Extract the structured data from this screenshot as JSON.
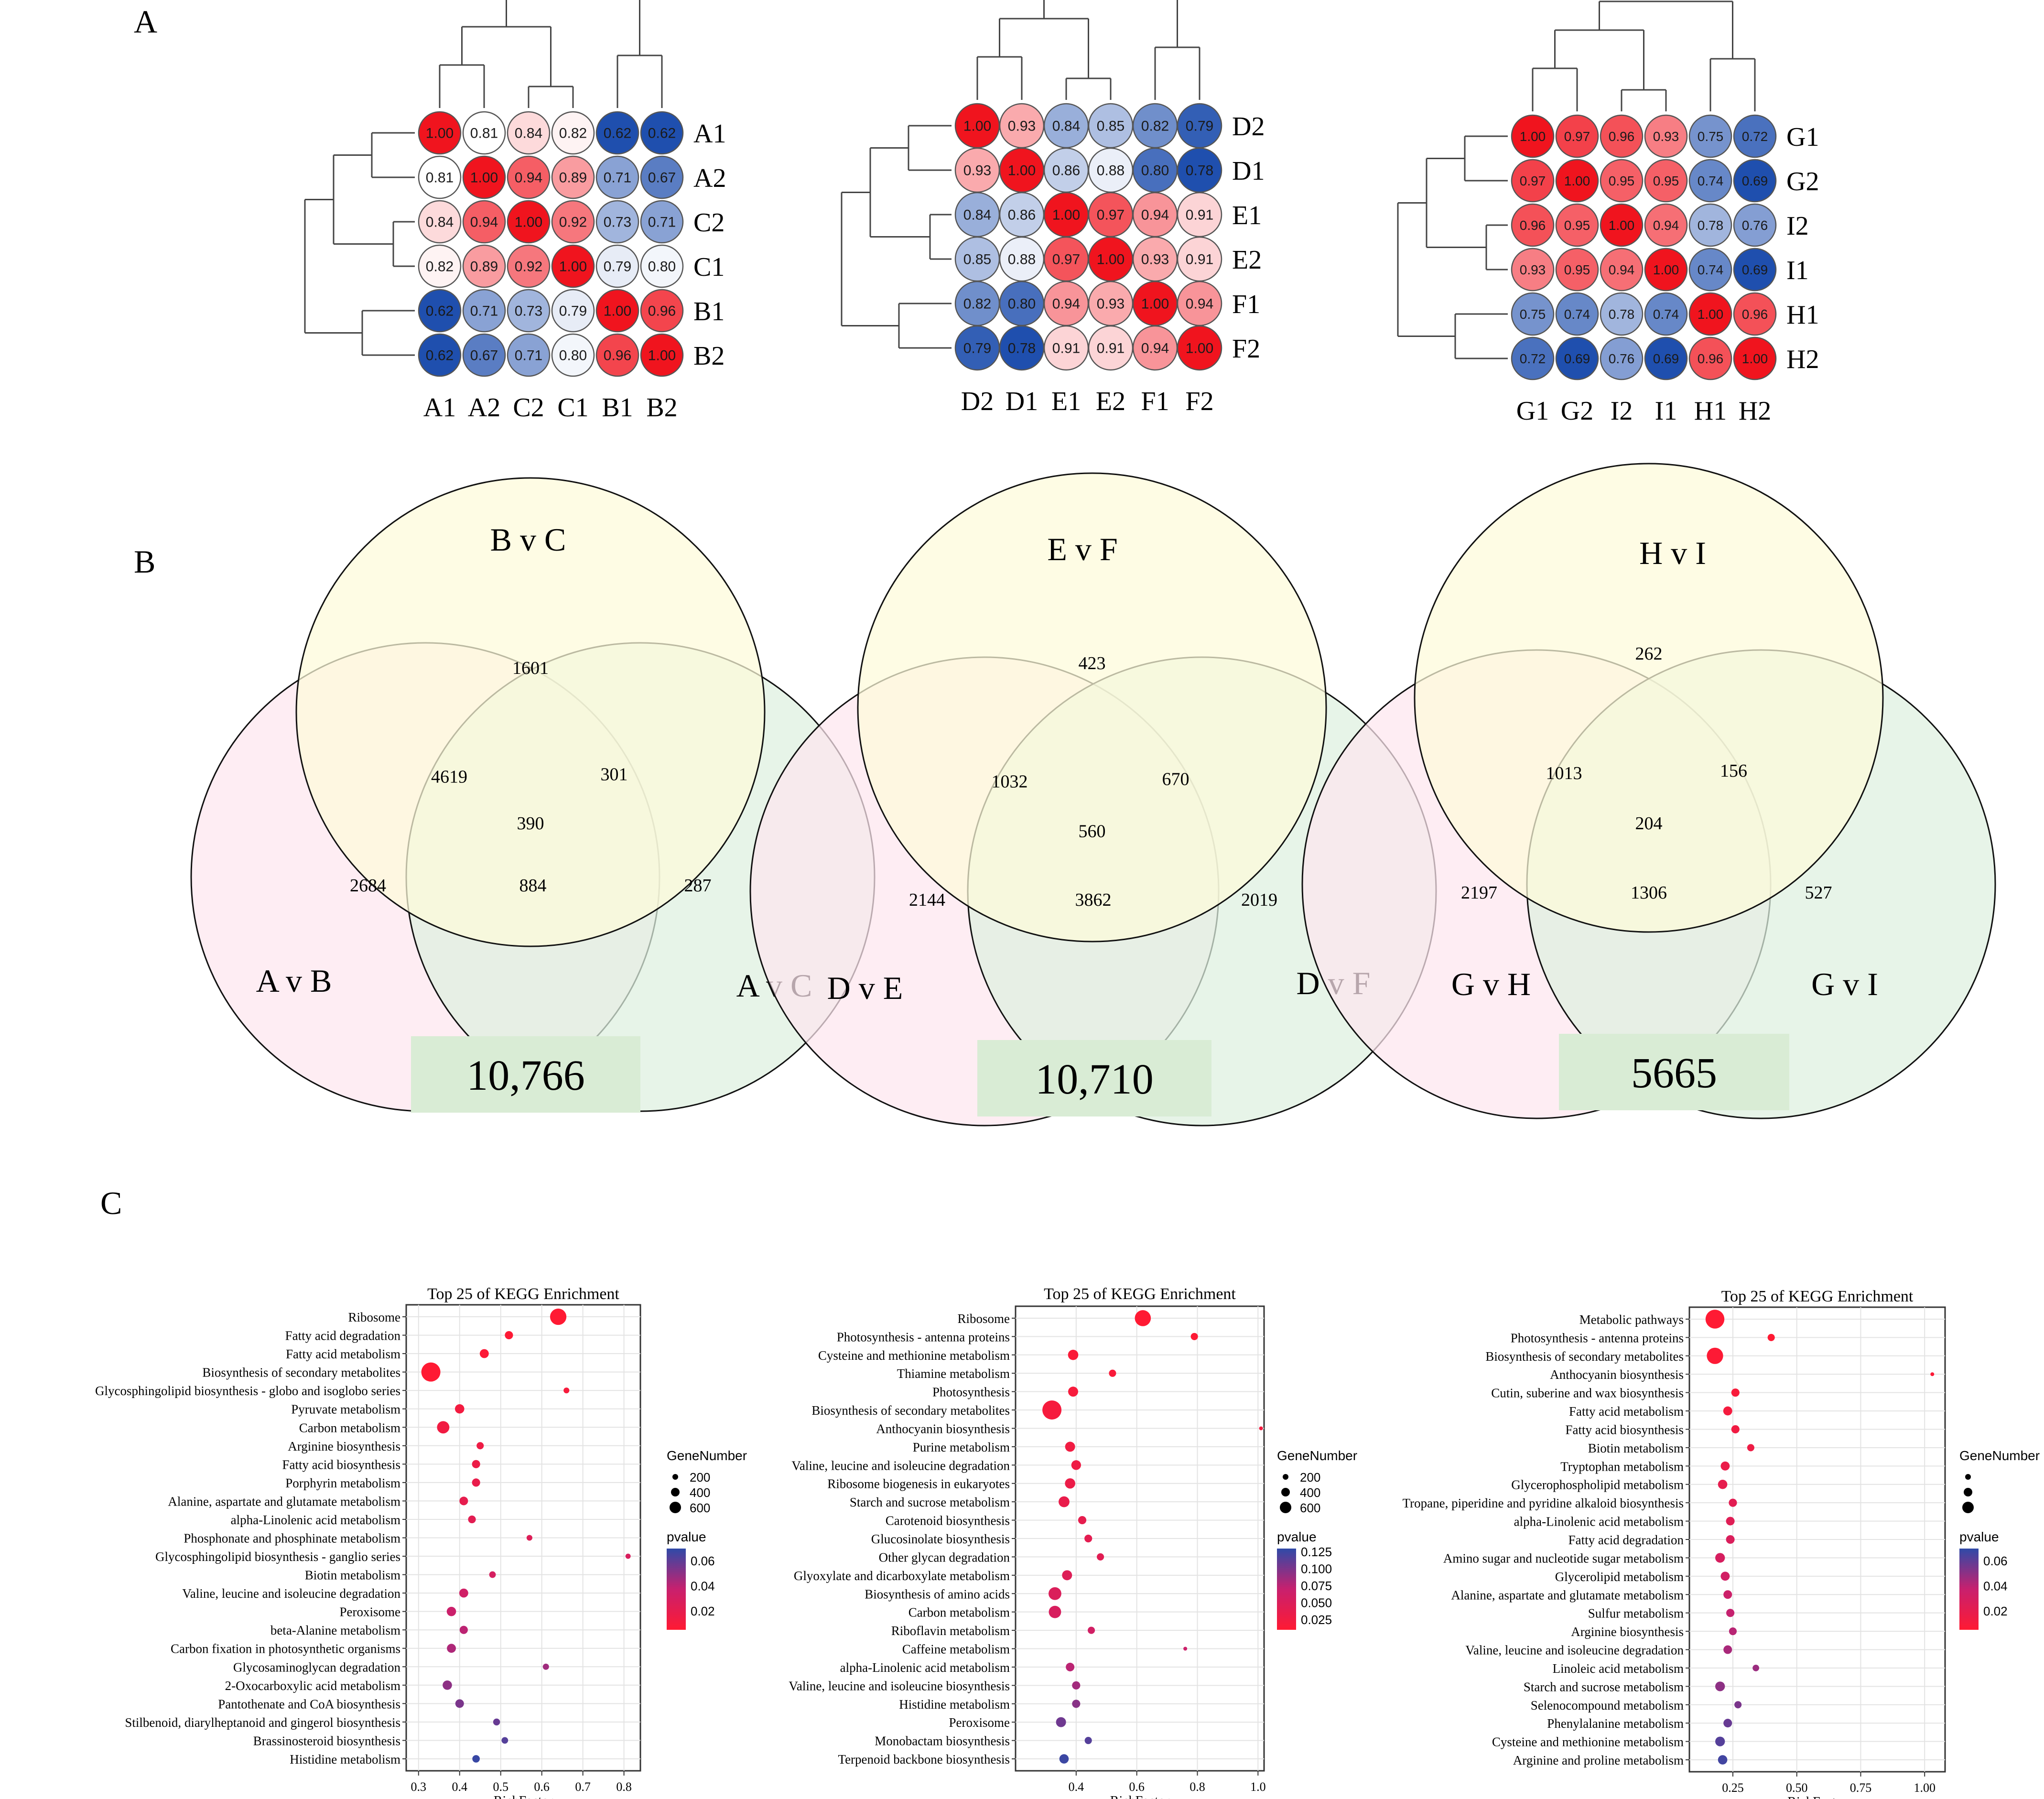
{
  "panel_labels": [
    "A",
    "B",
    "C"
  ],
  "chart_data": [
    {
      "type": "heatmap",
      "panel": "A",
      "title": "",
      "row_labels": [
        "A1",
        "A2",
        "C2",
        "C1",
        "B1",
        "B2"
      ],
      "col_labels": [
        "A1",
        "A2",
        "C2",
        "C1",
        "B1",
        "B2"
      ],
      "value_range": [
        0.62,
        1.0
      ],
      "colors": {
        "low": "#1f4fae",
        "mid": "#ffffff",
        "high": "#f0141e"
      },
      "values": [
        [
          1.0,
          0.81,
          0.84,
          0.82,
          0.62,
          0.62
        ],
        [
          0.81,
          1.0,
          0.94,
          0.89,
          0.71,
          0.67
        ],
        [
          0.84,
          0.94,
          1.0,
          0.92,
          0.73,
          0.71
        ],
        [
          0.82,
          0.89,
          0.92,
          1.0,
          0.79,
          0.8
        ],
        [
          0.62,
          0.71,
          0.73,
          0.79,
          1.0,
          0.96
        ],
        [
          0.62,
          0.67,
          0.71,
          0.8,
          0.96,
          1.0
        ]
      ],
      "dendrogram": [
        [
          0,
          1,
          2,
          3
        ],
        [
          [
            4,
            5
          ]
        ]
      ]
    },
    {
      "type": "heatmap",
      "panel": "A",
      "title": "",
      "row_labels": [
        "D2",
        "D1",
        "E1",
        "E2",
        "F1",
        "F2"
      ],
      "col_labels": [
        "D2",
        "D1",
        "E1",
        "E2",
        "F1",
        "F2"
      ],
      "value_range": [
        0.78,
        1.0
      ],
      "colors": {
        "low": "#1f4fae",
        "mid": "#ffffff",
        "high": "#f0141e"
      },
      "values": [
        [
          1.0,
          0.93,
          0.84,
          0.85,
          0.82,
          0.79
        ],
        [
          0.93,
          1.0,
          0.86,
          0.88,
          0.8,
          0.78
        ],
        [
          0.84,
          0.86,
          1.0,
          0.97,
          0.94,
          0.91
        ],
        [
          0.85,
          0.88,
          0.97,
          1.0,
          0.93,
          0.91
        ],
        [
          0.82,
          0.8,
          0.94,
          0.93,
          1.0,
          0.94
        ],
        [
          0.79,
          0.78,
          0.91,
          0.91,
          0.94,
          1.0
        ]
      ]
    },
    {
      "type": "heatmap",
      "panel": "A",
      "title": "",
      "row_labels": [
        "G1",
        "G2",
        "I2",
        "I1",
        "H1",
        "H2"
      ],
      "col_labels": [
        "G1",
        "G2",
        "I2",
        "I1",
        "H1",
        "H2"
      ],
      "value_range": [
        0.69,
        1.0
      ],
      "colors": {
        "low": "#1f4fae",
        "mid": "#ffffff",
        "high": "#f0141e"
      },
      "values": [
        [
          1.0,
          0.97,
          0.96,
          0.93,
          0.75,
          0.72
        ],
        [
          0.97,
          1.0,
          0.95,
          0.95,
          0.74,
          0.69
        ],
        [
          0.96,
          0.95,
          1.0,
          0.94,
          0.78,
          0.76
        ],
        [
          0.93,
          0.95,
          0.94,
          1.0,
          0.74,
          0.69
        ],
        [
          0.75,
          0.74,
          0.78,
          0.74,
          1.0,
          0.96
        ],
        [
          0.72,
          0.69,
          0.76,
          0.69,
          0.96,
          1.0
        ]
      ]
    },
    {
      "type": "venn",
      "panel": "B",
      "sets": [
        "B v C",
        "A v B",
        "A v C"
      ],
      "colors": [
        "#fdfbd9",
        "#fde6ee",
        "#def0df"
      ],
      "regions": {
        "only_top": "1601",
        "top_left": "4619",
        "top_right": "301",
        "center": "390",
        "only_left": "2684",
        "left_right": "884",
        "only_right": "287"
      },
      "total": "10,766"
    },
    {
      "type": "venn",
      "panel": "B",
      "sets": [
        "E v F",
        "D v E",
        "D v F"
      ],
      "colors": [
        "#fdfbd9",
        "#fde6ee",
        "#def0df"
      ],
      "regions": {
        "only_top": "423",
        "top_left": "1032",
        "top_right": "670",
        "center": "560",
        "only_left": "2144",
        "left_right": "3862",
        "only_right": "2019"
      },
      "total": "10,710"
    },
    {
      "type": "venn",
      "panel": "B",
      "sets": [
        "H v I",
        "G v H",
        "G v I"
      ],
      "colors": [
        "#fdfbd9",
        "#fde6ee",
        "#def0df"
      ],
      "regions": {
        "only_top": "262",
        "top_left": "1013",
        "top_right": "156",
        "center": "204",
        "only_left": "2197",
        "left_right": "1306",
        "only_right": "527"
      },
      "total": "5665"
    },
    {
      "type": "scatter",
      "panel": "C",
      "title": "Top 25 of KEGG Enrichment",
      "xlabel": "RichFactor",
      "xlim": [
        0.27,
        0.84
      ],
      "xticks": [
        0.3,
        0.4,
        0.5,
        0.6,
        0.7,
        0.8
      ],
      "xtick_labels": [
        "0.3",
        "0.4",
        "0.5",
        "0.6",
        "0.7",
        "0.8"
      ],
      "grid": true,
      "size_legend": {
        "title": "GeneNumber",
        "values": [
          200,
          400,
          600
        ],
        "labels": [
          "200",
          "400",
          "600"
        ]
      },
      "color_legend": {
        "title": "pvalue",
        "range": [
          0.005,
          0.07
        ],
        "ticks": [
          0.06,
          0.04,
          0.02
        ],
        "labels": [
          "0.06",
          "0.04",
          "0.02"
        ]
      },
      "points": [
        {
          "term": "Ribosome",
          "x": 0.64,
          "genes": 420,
          "p": 0.004
        },
        {
          "term": "Fatty acid degradation",
          "x": 0.52,
          "genes": 60,
          "p": 0.006
        },
        {
          "term": "Fatty acid metabolism",
          "x": 0.46,
          "genes": 80,
          "p": 0.007
        },
        {
          "term": "Biosynthesis of secondary metabolites",
          "x": 0.33,
          "genes": 620,
          "p": 0.004
        },
        {
          "term": "Glycosphingolipid biosynthesis - globo and isoglobo series",
          "x": 0.66,
          "genes": 20,
          "p": 0.01
        },
        {
          "term": "Pyruvate metabolism",
          "x": 0.4,
          "genes": 90,
          "p": 0.012
        },
        {
          "term": "Carbon metabolism",
          "x": 0.36,
          "genes": 200,
          "p": 0.013
        },
        {
          "term": "Arginine biosynthesis",
          "x": 0.45,
          "genes": 40,
          "p": 0.015
        },
        {
          "term": "Fatty acid biosynthesis",
          "x": 0.44,
          "genes": 60,
          "p": 0.016
        },
        {
          "term": "Porphyrin metabolism",
          "x": 0.44,
          "genes": 60,
          "p": 0.018
        },
        {
          "term": "Alanine, aspartate and glutamate metabolism",
          "x": 0.41,
          "genes": 70,
          "p": 0.02
        },
        {
          "term": "alpha-Linolenic acid metabolism",
          "x": 0.43,
          "genes": 50,
          "p": 0.022
        },
        {
          "term": "Phosphonate and phosphinate metabolism",
          "x": 0.57,
          "genes": 20,
          "p": 0.025
        },
        {
          "term": "Glycosphingolipid biosynthesis - ganglio series",
          "x": 0.81,
          "genes": 15,
          "p": 0.028
        },
        {
          "term": "Biotin metabolism",
          "x": 0.48,
          "genes": 30,
          "p": 0.03
        },
        {
          "term": "Valine, leucine and isoleucine degradation",
          "x": 0.41,
          "genes": 80,
          "p": 0.033
        },
        {
          "term": "Peroxisome",
          "x": 0.38,
          "genes": 90,
          "p": 0.036
        },
        {
          "term": "beta-Alanine metabolism",
          "x": 0.41,
          "genes": 60,
          "p": 0.04
        },
        {
          "term": "Carbon fixation in photosynthetic organisms",
          "x": 0.38,
          "genes": 80,
          "p": 0.043
        },
        {
          "term": "Glycosaminoglycan degradation",
          "x": 0.61,
          "genes": 25,
          "p": 0.046
        },
        {
          "term": "2-Oxocarboxylic acid metabolism",
          "x": 0.37,
          "genes": 90,
          "p": 0.05
        },
        {
          "term": "Pantothenate and CoA biosynthesis",
          "x": 0.4,
          "genes": 70,
          "p": 0.054
        },
        {
          "term": "Stilbenoid, diarylheptanoid and gingerol biosynthesis",
          "x": 0.49,
          "genes": 35,
          "p": 0.058
        },
        {
          "term": "Brassinosteroid biosynthesis",
          "x": 0.51,
          "genes": 30,
          "p": 0.062
        },
        {
          "term": "Histidine metabolism",
          "x": 0.44,
          "genes": 45,
          "p": 0.068
        }
      ]
    },
    {
      "type": "scatter",
      "panel": "C",
      "title": "Top 25 of KEGG Enrichment",
      "xlabel": "RichFactor",
      "xlim": [
        0.2,
        1.02
      ],
      "xticks": [
        0.4,
        0.6,
        0.8,
        1.0
      ],
      "xtick_labels": [
        "0.4",
        "0.6",
        "0.8",
        "1.0"
      ],
      "grid": true,
      "size_legend": {
        "title": "GeneNumber",
        "values": [
          200,
          400,
          600
        ],
        "labels": [
          "200",
          "400",
          "600"
        ]
      },
      "color_legend": {
        "title": "pvalue",
        "range": [
          0.01,
          0.13
        ],
        "ticks": [
          0.125,
          0.1,
          0.075,
          0.05,
          0.025
        ],
        "labels": [
          "0.125",
          "0.100",
          "0.075",
          "0.050",
          "0.025"
        ]
      },
      "points": [
        {
          "term": "Ribosome",
          "x": 0.62,
          "genes": 400,
          "p": 0.01
        },
        {
          "term": "Photosynthesis - antenna proteins",
          "x": 0.79,
          "genes": 40,
          "p": 0.012
        },
        {
          "term": "Cysteine and methionine metabolism",
          "x": 0.39,
          "genes": 120,
          "p": 0.015
        },
        {
          "term": "Thiamine metabolism",
          "x": 0.52,
          "genes": 40,
          "p": 0.017
        },
        {
          "term": "Photosynthesis",
          "x": 0.39,
          "genes": 110,
          "p": 0.019
        },
        {
          "term": "Biosynthesis of secondary metabolites",
          "x": 0.32,
          "genes": 620,
          "p": 0.02
        },
        {
          "term": "Anthocyanin biosynthesis",
          "x": 1.01,
          "genes": 10,
          "p": 0.022
        },
        {
          "term": "Purine metabolism",
          "x": 0.38,
          "genes": 110,
          "p": 0.025
        },
        {
          "term": "Valine, leucine and isoleucine degradation",
          "x": 0.4,
          "genes": 100,
          "p": 0.028
        },
        {
          "term": "Ribosome biogenesis in eukaryotes",
          "x": 0.38,
          "genes": 120,
          "p": 0.031
        },
        {
          "term": "Starch and sucrose metabolism",
          "x": 0.36,
          "genes": 140,
          "p": 0.034
        },
        {
          "term": "Carotenoid biosynthesis",
          "x": 0.42,
          "genes": 60,
          "p": 0.037
        },
        {
          "term": "Glucosinolate biosynthesis",
          "x": 0.44,
          "genes": 50,
          "p": 0.04
        },
        {
          "term": "Other glycan degradation",
          "x": 0.48,
          "genes": 40,
          "p": 0.043
        },
        {
          "term": "Glyoxylate and dicarboxylate metabolism",
          "x": 0.37,
          "genes": 110,
          "p": 0.047
        },
        {
          "term": "Biosynthesis of amino acids",
          "x": 0.33,
          "genes": 220,
          "p": 0.05
        },
        {
          "term": "Carbon metabolism",
          "x": 0.33,
          "genes": 200,
          "p": 0.054
        },
        {
          "term": "Riboflavin metabolism",
          "x": 0.45,
          "genes": 40,
          "p": 0.06
        },
        {
          "term": "Caffeine metabolism",
          "x": 0.76,
          "genes": 10,
          "p": 0.066
        },
        {
          "term": "alpha-Linolenic acid metabolism",
          "x": 0.38,
          "genes": 70,
          "p": 0.075
        },
        {
          "term": "Valine, leucine and isoleucine biosynthesis",
          "x": 0.4,
          "genes": 60,
          "p": 0.085
        },
        {
          "term": "Histidine metabolism",
          "x": 0.4,
          "genes": 60,
          "p": 0.095
        },
        {
          "term": "Peroxisome",
          "x": 0.35,
          "genes": 110,
          "p": 0.105
        },
        {
          "term": "Monobactam biosynthesis",
          "x": 0.44,
          "genes": 40,
          "p": 0.115
        },
        {
          "term": "Terpenoid backbone biosynthesis",
          "x": 0.36,
          "genes": 90,
          "p": 0.125
        }
      ]
    },
    {
      "type": "scatter",
      "panel": "C",
      "title": "Top 25 of KEGG Enrichment",
      "xlabel": "RichFactor",
      "xlim": [
        0.08,
        1.08
      ],
      "xticks": [
        0.25,
        0.5,
        0.75,
        1.0
      ],
      "xtick_labels": [
        "0.25",
        "0.50",
        "0.75",
        "1.00"
      ],
      "grid": true,
      "size_legend": {
        "title": "GeneNumber",
        "values": [
          200,
          400,
          600
        ],
        "labels": [
          "",
          "",
          ""
        ]
      },
      "color_legend": {
        "title": "pvalue",
        "range": [
          0.005,
          0.07
        ],
        "ticks": [
          0.06,
          0.04,
          0.02
        ],
        "labels": [
          "0.06",
          "0.04",
          "0.02"
        ]
      },
      "points": [
        {
          "term": "Metabolic pathways",
          "x": 0.18,
          "genes": 600,
          "p": 0.004
        },
        {
          "term": "Photosynthesis - antenna proteins",
          "x": 0.4,
          "genes": 40,
          "p": 0.005
        },
        {
          "term": "Biosynthesis of secondary metabolites",
          "x": 0.18,
          "genes": 420,
          "p": 0.006
        },
        {
          "term": "Anthocyanin biosynthesis",
          "x": 1.03,
          "genes": 10,
          "p": 0.007
        },
        {
          "term": "Cutin, suberine and wax biosynthesis",
          "x": 0.26,
          "genes": 60,
          "p": 0.009
        },
        {
          "term": "Fatty acid metabolism",
          "x": 0.23,
          "genes": 80,
          "p": 0.011
        },
        {
          "term": "Fatty acid biosynthesis",
          "x": 0.26,
          "genes": 60,
          "p": 0.013
        },
        {
          "term": "Biotin metabolism",
          "x": 0.32,
          "genes": 40,
          "p": 0.015
        },
        {
          "term": "Tryptophan metabolism",
          "x": 0.22,
          "genes": 80,
          "p": 0.017
        },
        {
          "term": "Glycerophospholipid metabolism",
          "x": 0.21,
          "genes": 90,
          "p": 0.02
        },
        {
          "term": "Tropane, piperidine and pyridine alkaloid biosynthesis",
          "x": 0.25,
          "genes": 60,
          "p": 0.022
        },
        {
          "term": "alpha-Linolenic acid metabolism",
          "x": 0.24,
          "genes": 70,
          "p": 0.024
        },
        {
          "term": "Fatty acid degradation",
          "x": 0.24,
          "genes": 70,
          "p": 0.027
        },
        {
          "term": "Amino sugar and nucleotide sugar metabolism",
          "x": 0.2,
          "genes": 100,
          "p": 0.029
        },
        {
          "term": "Glycerolipid metabolism",
          "x": 0.22,
          "genes": 80,
          "p": 0.032
        },
        {
          "term": "Alanine, aspartate and glutamate metabolism",
          "x": 0.23,
          "genes": 70,
          "p": 0.035
        },
        {
          "term": "Sulfur metabolism",
          "x": 0.24,
          "genes": 60,
          "p": 0.038
        },
        {
          "term": "Arginine biosynthesis",
          "x": 0.25,
          "genes": 50,
          "p": 0.041
        },
        {
          "term": "Valine, leucine and isoleucine degradation",
          "x": 0.23,
          "genes": 70,
          "p": 0.044
        },
        {
          "term": "Linoleic acid metabolism",
          "x": 0.34,
          "genes": 30,
          "p": 0.047
        },
        {
          "term": "Starch and sucrose metabolism",
          "x": 0.2,
          "genes": 100,
          "p": 0.05
        },
        {
          "term": "Selenocompound metabolism",
          "x": 0.27,
          "genes": 40,
          "p": 0.054
        },
        {
          "term": "Phenylalanine metabolism",
          "x": 0.23,
          "genes": 70,
          "p": 0.058
        },
        {
          "term": "Cysteine and methionine metabolism",
          "x": 0.2,
          "genes": 100,
          "p": 0.062
        },
        {
          "term": "Arginine and proline metabolism",
          "x": 0.21,
          "genes": 90,
          "p": 0.066
        }
      ]
    }
  ]
}
